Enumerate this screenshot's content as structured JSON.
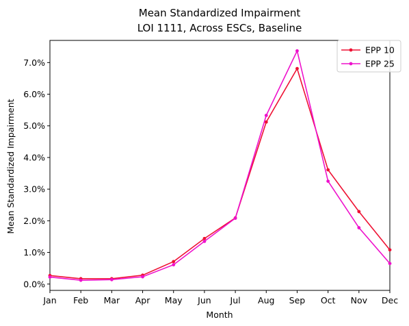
{
  "chart_data": {
    "type": "line",
    "title": "Mean Standardized Impairment",
    "subtitle": "LOI 1111, Across ESCs, Baseline",
    "xlabel": "Month",
    "ylabel": "Mean Standardized Impairment",
    "categories": [
      "Jan",
      "Feb",
      "Mar",
      "Apr",
      "May",
      "Jun",
      "Jul",
      "Aug",
      "Sep",
      "Oct",
      "Nov",
      "Dec"
    ],
    "ylim": [
      -0.2,
      7.7
    ],
    "yticks": [
      0.0,
      1.0,
      2.0,
      3.0,
      4.0,
      5.0,
      6.0,
      7.0
    ],
    "ytick_labels": [
      "0.0%",
      "1.0%",
      "2.0%",
      "3.0%",
      "4.0%",
      "5.0%",
      "6.0%",
      "7.0%"
    ],
    "grid": false,
    "legend": "top-right",
    "series": [
      {
        "name": "EPP 10",
        "color": "#ee1133",
        "values": [
          0.27,
          0.17,
          0.17,
          0.28,
          0.71,
          1.44,
          2.09,
          5.12,
          6.81,
          3.61,
          2.29,
          1.08
        ]
      },
      {
        "name": "EPP 25",
        "color": "#ee11cc",
        "values": [
          0.22,
          0.12,
          0.14,
          0.23,
          0.61,
          1.35,
          2.08,
          5.33,
          7.37,
          3.25,
          1.78,
          0.65
        ]
      }
    ]
  }
}
